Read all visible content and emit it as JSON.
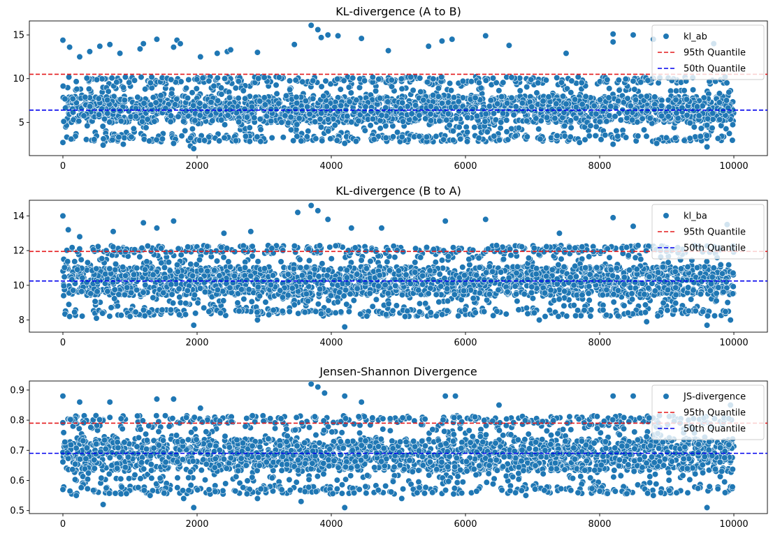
{
  "chart_data": [
    {
      "type": "scatter",
      "title": "KL-divergence (A to B)",
      "xlabel": "",
      "ylabel": "",
      "xlim": [
        -500,
        10500
      ],
      "ylim": [
        1.2,
        16.6
      ],
      "xticks": [
        0,
        2000,
        4000,
        6000,
        8000,
        10000
      ],
      "yticks": [
        5,
        10,
        15
      ],
      "ytick_labels": [
        "5",
        "10",
        "15"
      ],
      "n_points": 10000,
      "series": [
        {
          "name": "kl_ab",
          "color": "#1f77b4",
          "core": [
            3.5,
            9.5
          ],
          "outliers": [
            [
              0,
              14.4
            ],
            [
              100,
              13.6
            ],
            [
              250,
              12.5
            ],
            [
              400,
              13.1
            ],
            [
              550,
              13.7
            ],
            [
              700,
              13.9
            ],
            [
              850,
              12.9
            ],
            [
              1150,
              13.4
            ],
            [
              1200,
              14.0
            ],
            [
              1400,
              14.5
            ],
            [
              1650,
              13.6
            ],
            [
              1700,
              14.4
            ],
            [
              1750,
              14.0
            ],
            [
              2050,
              12.5
            ],
            [
              2300,
              12.9
            ],
            [
              2450,
              13.1
            ],
            [
              2500,
              13.3
            ],
            [
              2900,
              13.0
            ],
            [
              3450,
              13.9
            ],
            [
              3700,
              16.1
            ],
            [
              3800,
              15.6
            ],
            [
              3850,
              14.7
            ],
            [
              3950,
              15.0
            ],
            [
              4100,
              14.9
            ],
            [
              4450,
              14.6
            ],
            [
              4850,
              13.2
            ],
            [
              5450,
              13.7
            ],
            [
              5650,
              14.3
            ],
            [
              5800,
              14.5
            ],
            [
              6300,
              14.9
            ],
            [
              6650,
              13.8
            ],
            [
              7500,
              12.9
            ],
            [
              8200,
              15.1
            ],
            [
              8200,
              14.2
            ],
            [
              8500,
              15.0
            ],
            [
              8800,
              14.5
            ],
            [
              9700,
              14.0
            ],
            [
              0,
              2.7
            ],
            [
              600,
              2.4
            ],
            [
              900,
              2.5
            ],
            [
              1650,
              2.6
            ],
            [
              1900,
              2.3
            ],
            [
              1950,
              2.0
            ],
            [
              4200,
              2.6
            ],
            [
              7700,
              2.7
            ],
            [
              8200,
              2.5
            ],
            [
              8850,
              2.6
            ],
            [
              9600,
              2.2
            ]
          ]
        }
      ],
      "hlines": [
        {
          "name": "95th Quantile",
          "y": 10.5,
          "color": "#e41a1c"
        },
        {
          "name": "50th Quantile",
          "y": 6.4,
          "color": "#0000ee"
        }
      ],
      "legend": [
        "kl_ab",
        "95th Quantile",
        "50th Quantile"
      ],
      "legend_position": "top-right"
    },
    {
      "type": "scatter",
      "title": "KL-divergence (B to A)",
      "xlabel": "",
      "ylabel": "",
      "xlim": [
        -500,
        10500
      ],
      "ylim": [
        7.3,
        14.9
      ],
      "xticks": [
        0,
        2000,
        4000,
        6000,
        8000,
        10000
      ],
      "yticks": [
        8,
        10,
        12,
        14
      ],
      "ytick_labels": [
        "8",
        "10",
        "12",
        "14"
      ],
      "n_points": 10000,
      "series": [
        {
          "name": "kl_ba",
          "color": "#1f77b4",
          "core": [
            8.6,
            11.9
          ],
          "outliers": [
            [
              0,
              14.0
            ],
            [
              80,
              13.2
            ],
            [
              250,
              12.8
            ],
            [
              750,
              13.1
            ],
            [
              1200,
              13.6
            ],
            [
              1400,
              13.3
            ],
            [
              1650,
              13.7
            ],
            [
              2400,
              13.0
            ],
            [
              2800,
              13.1
            ],
            [
              3500,
              14.2
            ],
            [
              3700,
              14.6
            ],
            [
              3800,
              14.3
            ],
            [
              3950,
              13.8
            ],
            [
              4300,
              13.3
            ],
            [
              4750,
              13.3
            ],
            [
              5700,
              13.7
            ],
            [
              6300,
              13.8
            ],
            [
              7400,
              13.0
            ],
            [
              8200,
              13.9
            ],
            [
              8500,
              13.4
            ],
            [
              9900,
              13.5
            ],
            [
              100,
              8.2
            ],
            [
              500,
              8.1
            ],
            [
              1000,
              8.2
            ],
            [
              1950,
              7.7
            ],
            [
              2900,
              8.0
            ],
            [
              4200,
              7.6
            ],
            [
              5100,
              8.2
            ],
            [
              7100,
              8.0
            ],
            [
              8700,
              7.9
            ],
            [
              9600,
              7.7
            ],
            [
              9950,
              8.0
            ]
          ]
        }
      ],
      "hlines": [
        {
          "name": "95th Quantile",
          "y": 11.95,
          "color": "#e41a1c"
        },
        {
          "name": "50th Quantile",
          "y": 10.25,
          "color": "#0000ee"
        }
      ],
      "legend": [
        "kl_ba",
        "95th Quantile",
        "50th Quantile"
      ],
      "legend_position": "top-right"
    },
    {
      "type": "scatter",
      "title": "Jensen-Shannon Divergence",
      "xlabel": "",
      "ylabel": "",
      "xlim": [
        -500,
        10500
      ],
      "ylim": [
        0.49,
        0.93
      ],
      "xticks": [
        0,
        2000,
        4000,
        6000,
        8000,
        10000
      ],
      "yticks": [
        0.5,
        0.6,
        0.7,
        0.8,
        0.9
      ],
      "ytick_labels": [
        "0.5",
        "0.6",
        "0.7",
        "0.8",
        "0.9"
      ],
      "n_points": 10000,
      "series": [
        {
          "name": "JS-divergence",
          "color": "#1f77b4",
          "core": [
            0.58,
            0.79
          ],
          "outliers": [
            [
              0,
              0.88
            ],
            [
              250,
              0.86
            ],
            [
              700,
              0.86
            ],
            [
              1400,
              0.87
            ],
            [
              1650,
              0.87
            ],
            [
              2050,
              0.84
            ],
            [
              3700,
              0.92
            ],
            [
              3800,
              0.91
            ],
            [
              3900,
              0.89
            ],
            [
              4200,
              0.88
            ],
            [
              4450,
              0.86
            ],
            [
              5700,
              0.88
            ],
            [
              5850,
              0.88
            ],
            [
              6500,
              0.85
            ],
            [
              8200,
              0.88
            ],
            [
              8500,
              0.88
            ],
            [
              9950,
              0.85
            ],
            [
              0,
              0.57
            ],
            [
              200,
              0.55
            ],
            [
              600,
              0.52
            ],
            [
              1300,
              0.55
            ],
            [
              1800,
              0.54
            ],
            [
              1950,
              0.51
            ],
            [
              2900,
              0.54
            ],
            [
              3550,
              0.53
            ],
            [
              4200,
              0.51
            ],
            [
              5050,
              0.54
            ],
            [
              6900,
              0.55
            ],
            [
              8800,
              0.55
            ],
            [
              9600,
              0.51
            ]
          ]
        }
      ],
      "hlines": [
        {
          "name": "95th Quantile",
          "y": 0.79,
          "color": "#e41a1c"
        },
        {
          "name": "50th Quantile",
          "y": 0.69,
          "color": "#0000ee"
        }
      ],
      "legend": [
        "JS-divergence",
        "95th Quantile",
        "50th Quantile"
      ],
      "legend_position": "top-right"
    }
  ]
}
